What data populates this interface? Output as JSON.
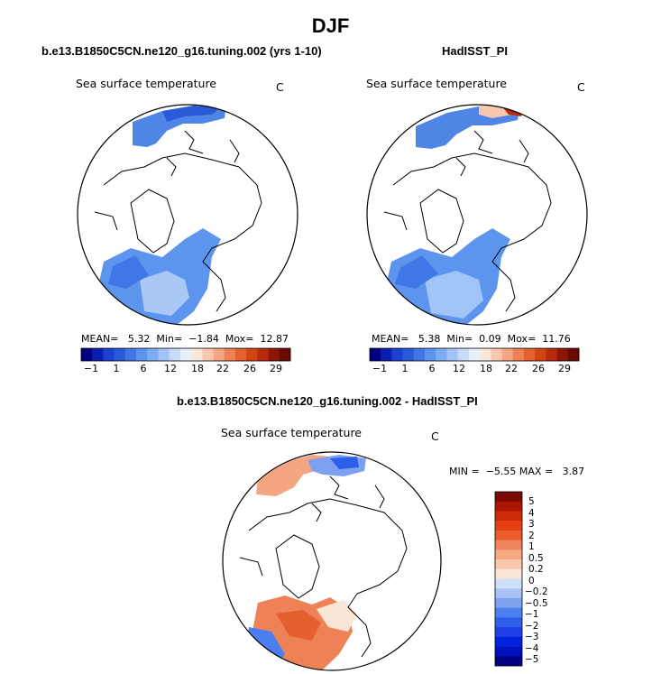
{
  "title": "DJF",
  "panels": [
    {
      "id": "model",
      "heading": "b.e13.B1850C5CN.ne120_g16.tuning.002 (yrs 1-10)",
      "variable": "Sea surface temperature",
      "unit": "C",
      "stats": {
        "mean_label": "MEAN=",
        "mean": "5.32",
        "min_label": "Min=",
        "min": "−1.84",
        "max_label": "Mox=",
        "max": "12.87"
      }
    },
    {
      "id": "obs",
      "heading": "HadISST_PI",
      "variable": "Sea surface temperature",
      "unit": "C",
      "stats": {
        "mean_label": "MEAN=",
        "mean": "5.38",
        "min_label": "Min=",
        "min": "0.09",
        "max_label": "Mox=",
        "max": "11.76"
      }
    }
  ],
  "diff_panel": {
    "heading": "b.e13.B1850C5CN.ne120_g16.tuning.002 - HadISST_PI",
    "variable": "Sea surface temperature",
    "unit": "C",
    "stats": {
      "min_label": "MIN =",
      "min": "−5.55",
      "max_label": "MAX =",
      "max": "3.87"
    }
  },
  "colorbar_abs": {
    "colors": [
      "#000080",
      "#0a1fb0",
      "#1e3fd0",
      "#2a5ad8",
      "#3f78e6",
      "#5c94ee",
      "#7eacf2",
      "#9fc4f5",
      "#c6dcf8",
      "#e6f0fb",
      "#fbe8dc",
      "#f8c8ae",
      "#f4a582",
      "#ee8256",
      "#e4602f",
      "#d44314",
      "#b52a0c",
      "#8c1606",
      "#6a0a00"
    ],
    "tick_labels": [
      "−1",
      "1",
      "6",
      "12",
      "18",
      "22",
      "26",
      "29"
    ]
  },
  "colorbar_diff": {
    "colors": [
      "#000080",
      "#0011c0",
      "#0022dd",
      "#1f40e6",
      "#2e5fe8",
      "#4b7ef0",
      "#7ea0f0",
      "#a9c2f4",
      "#d0e0f8",
      "#fbe5d6",
      "#f7c9aa",
      "#f3aa82",
      "#ee845a",
      "#eb5c2c",
      "#e64012",
      "#cc2a08",
      "#aa1603",
      "#7a0a02"
    ],
    "tick_labels": [
      "5",
      "4",
      "3",
      "2",
      "1",
      "0.5",
      "0.2",
      "0",
      "−0.2",
      "−0.5",
      "−1",
      "−2",
      "−3",
      "−4",
      "−5"
    ]
  }
}
